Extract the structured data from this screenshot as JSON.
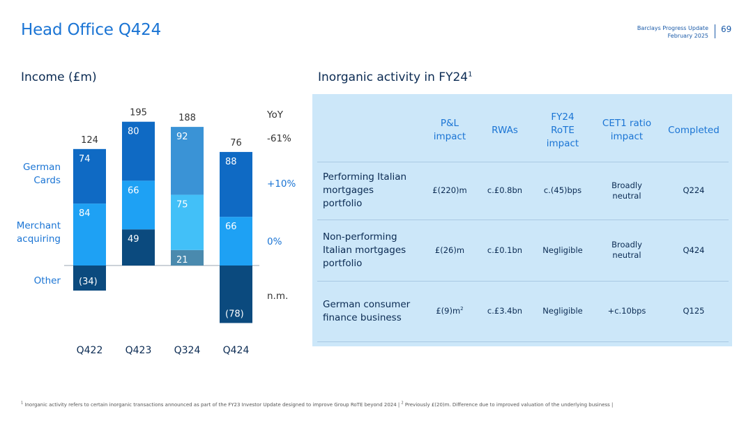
{
  "header": {
    "title": "Head Office Q424",
    "meta_line1": "Barclays Progress Update",
    "meta_line2": "February 2025",
    "page_number": "69"
  },
  "income_section": {
    "title": "Income (£m)"
  },
  "inorganic_section": {
    "title": "Inorganic activity in FY24",
    "title_sup": "1"
  },
  "chart_data": {
    "type": "bar",
    "stacked": true,
    "title": "Income (£m)",
    "categories": [
      "Q422",
      "Q423",
      "Q324",
      "Q424"
    ],
    "series": [
      {
        "name": "German Cards",
        "values": [
          74,
          80,
          92,
          88
        ],
        "value_labels": [
          "74",
          "80",
          "92",
          "88"
        ],
        "colors": [
          "#0f6ac4",
          "#0f6ac4",
          "#3a93d6",
          "#0f6ac4"
        ]
      },
      {
        "name": "Merchant acquiring",
        "values": [
          84,
          66,
          75,
          66
        ],
        "value_labels": [
          "84",
          "66",
          "75",
          "66"
        ],
        "colors": [
          "#1ea1f4",
          "#1ea1f4",
          "#42c0f8",
          "#1ea1f4"
        ]
      },
      {
        "name": "Other",
        "values": [
          -34,
          49,
          21,
          -78
        ],
        "value_labels": [
          "(34)",
          "49",
          "21",
          "(78)"
        ],
        "colors": [
          "#0b4a7e",
          "#0b4a7e",
          "#4a8aae",
          "#0b4a7e"
        ]
      }
    ],
    "totals": [
      124,
      195,
      188,
      76
    ],
    "total_labels": [
      "124",
      "195",
      "188",
      "76"
    ],
    "yoy": {
      "header": "YoY",
      "total": "-61%",
      "german_cards": "+10%",
      "merchant_acquiring": "0%",
      "other": "n.m."
    },
    "ylim": [
      -90,
      210
    ],
    "xlabel": "",
    "ylabel": ""
  },
  "table": {
    "headers": [
      [
        "P&L",
        "impact"
      ],
      [
        "RWAs"
      ],
      [
        "FY24",
        "RoTE",
        "impact"
      ],
      [
        "CET1 ratio",
        "impact"
      ],
      [
        "Completed"
      ]
    ],
    "rows": [
      {
        "label": [
          "Performing Italian",
          "mortgages",
          "portfolio"
        ],
        "cells": [
          [
            "£(220)m"
          ],
          [
            "c.£0.8bn"
          ],
          [
            "c.(45)bps"
          ],
          [
            "Broadly",
            "neutral"
          ],
          [
            "Q224"
          ]
        ]
      },
      {
        "label": [
          "Non-performing",
          "Italian mortgages",
          "portfolio"
        ],
        "cells": [
          [
            "£(26)m"
          ],
          [
            "c.£0.1bn"
          ],
          [
            "Negligible"
          ],
          [
            "Broadly",
            "neutral"
          ],
          [
            "Q424"
          ]
        ]
      },
      {
        "label": [
          "German consumer",
          "finance business"
        ],
        "cells": [
          [
            "£(9)m"
          ],
          [
            "c.£3.4bn"
          ],
          [
            "Negligible"
          ],
          [
            "+c.10bps"
          ],
          [
            "Q125"
          ]
        ],
        "first_cell_sup": "2"
      }
    ]
  },
  "footnote": {
    "sup1": "1",
    "text1": " Inorganic activity refers to certain inorganic transactions announced as part of the FY23 Investor Update designed to improve Group RoTE beyond 2024 | ",
    "sup2": "2",
    "text2": " Previously £(20)m. Difference due to improved valuation of the underlying business |"
  }
}
